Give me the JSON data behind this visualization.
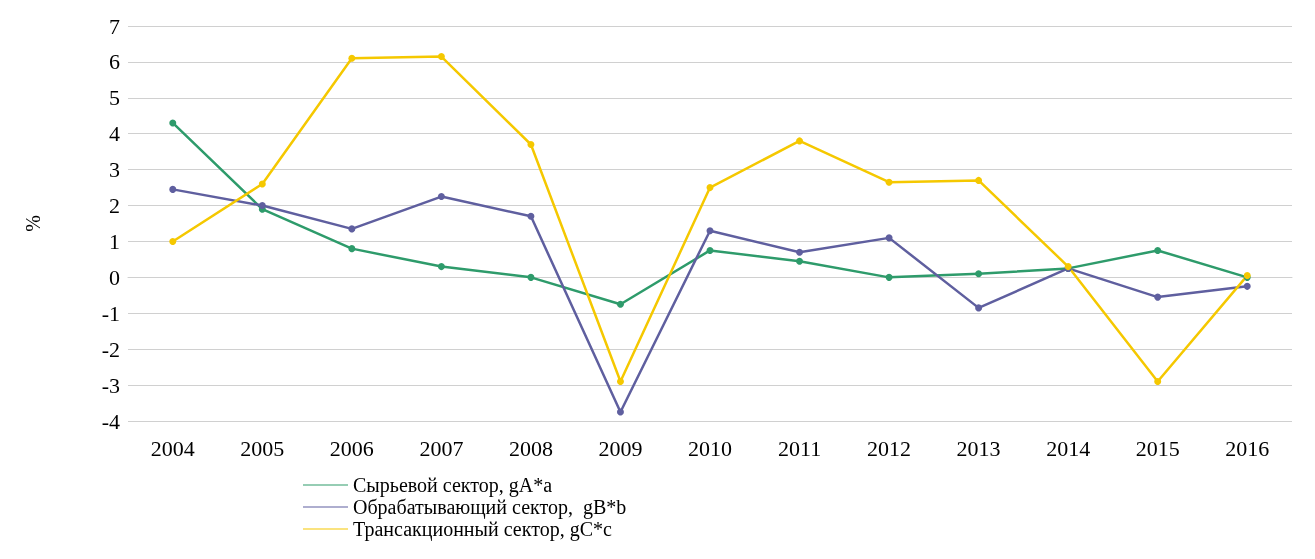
{
  "chart_data": {
    "type": "line",
    "ylabel": "%",
    "categories": [
      "2004",
      "2005",
      "2006",
      "2007",
      "2008",
      "2009",
      "2010",
      "2011",
      "2012",
      "2013",
      "2014",
      "2015",
      "2016"
    ],
    "series": [
      {
        "name": "Сырьевой сектор, gA*a",
        "color": "#2e9b6b",
        "values": [
          4.3,
          1.9,
          0.8,
          0.3,
          0,
          -0.75,
          0.75,
          0.45,
          0,
          0.1,
          0.25,
          0.75,
          0
        ]
      },
      {
        "name": "Обрабатывающий сектор,  gB*b",
        "color": "#5f5f9f",
        "values": [
          2.45,
          2.0,
          1.35,
          2.25,
          1.7,
          -3.75,
          1.3,
          0.7,
          1.1,
          -0.85,
          0.25,
          -0.55,
          -0.25
        ]
      },
      {
        "name": "Трансакционный сектор, gC*c",
        "color": "#f5c800",
        "values": [
          1.0,
          2.6,
          6.1,
          6.15,
          3.7,
          -2.9,
          2.5,
          3.8,
          2.65,
          2.7,
          0.3,
          -2.9,
          0.05
        ]
      }
    ],
    "ylim": [
      -4,
      7
    ],
    "yticks": [
      -4,
      -3,
      -2,
      -1,
      0,
      1,
      2,
      3,
      4,
      5,
      6,
      7
    ],
    "grid": "y",
    "legend": "bottom left",
    "marker": "circle",
    "line_style": "solid"
  }
}
